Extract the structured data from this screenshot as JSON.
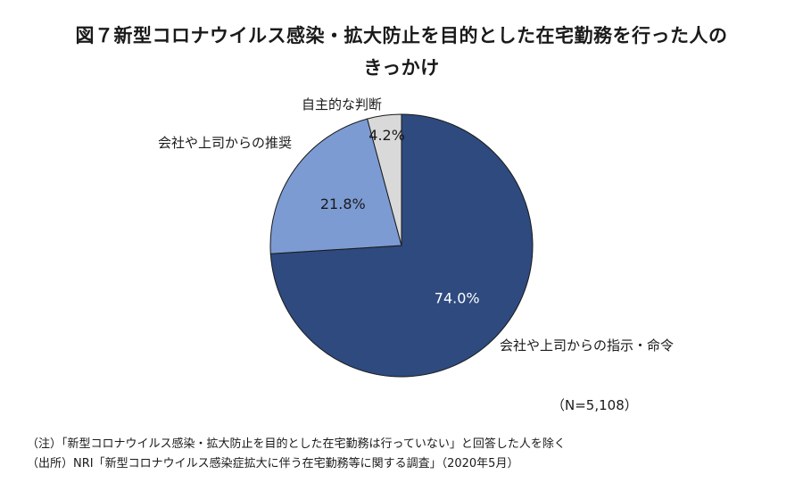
{
  "chart_data": {
    "type": "pie",
    "title": "図７新型コロナウイルス感染・拡大防止を目的とした在宅勤務を行った人のきっかけ",
    "title_lines": [
      "図７新型コロナウイルス感染・拡大防止を目的とした在宅勤務を行った人の",
      "きっかけ"
    ],
    "slices": [
      {
        "label": "会社や上司からの指示・命令",
        "value": 74.0,
        "value_label": "74.0%",
        "color": "#2e4a7f"
      },
      {
        "label": "会社や上司からの推奨",
        "value": 21.8,
        "value_label": "21.8%",
        "color": "#7c9bd3"
      },
      {
        "label": "自主的な判断",
        "value": 4.2,
        "value_label": "4.2%",
        "color": "#d9d9d9"
      }
    ],
    "legend": "none",
    "sample_size": "（N=5,108）"
  },
  "notes": {
    "note": "（注）「新型コロナウイルス感染・拡大防止を目的とした在宅勤務は行っていない」と回答した人を除く",
    "source": "（出所）NRI「新型コロナウイルス感染症拡大に伴う在宅勤務等に関する調査」（2020年5月）"
  }
}
